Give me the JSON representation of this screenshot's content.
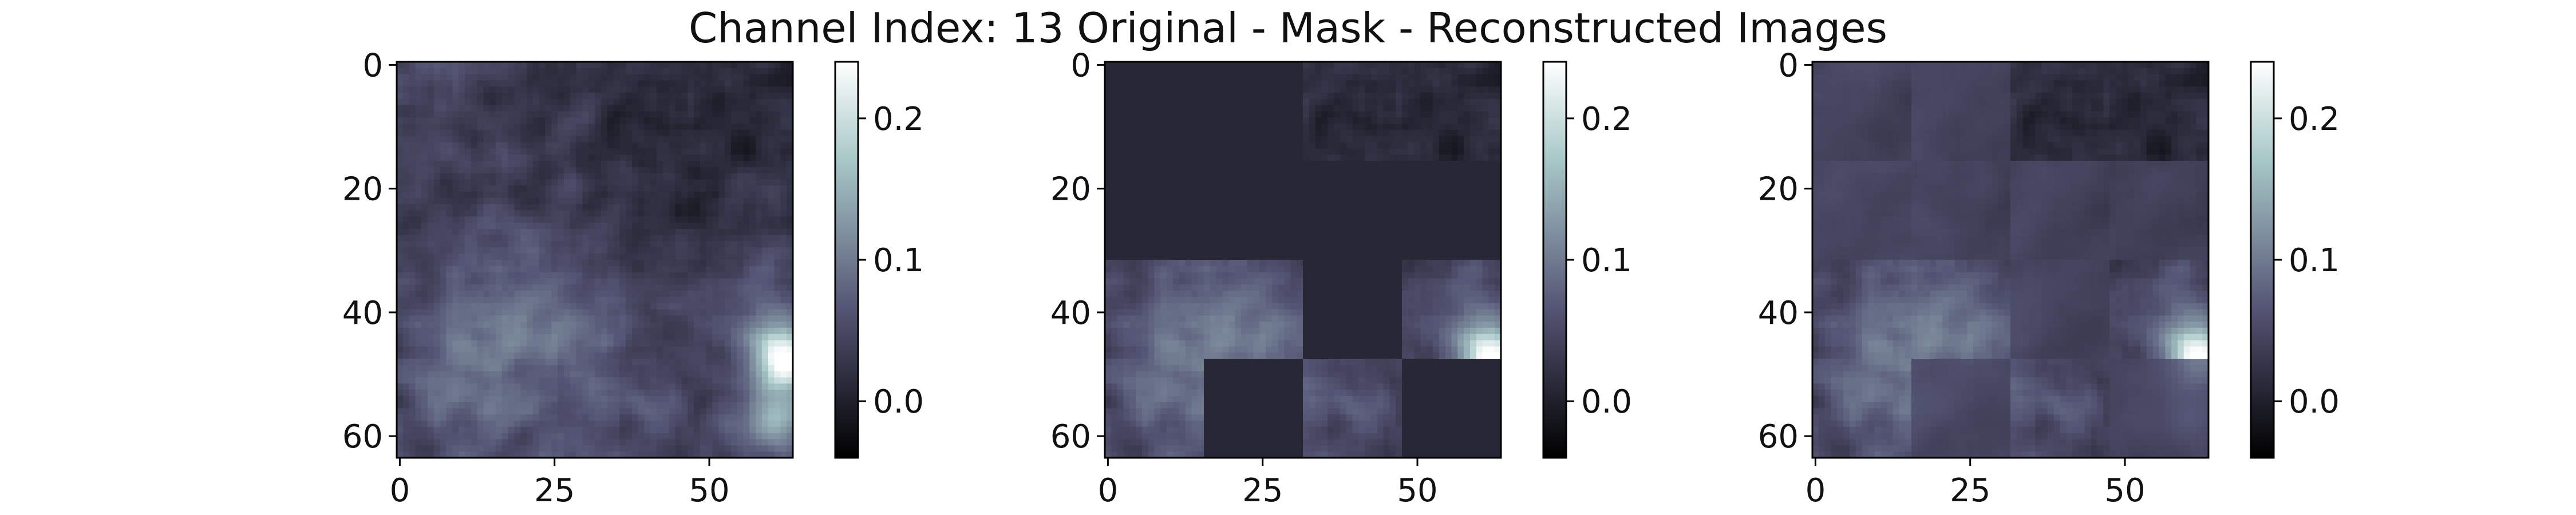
{
  "title": "Channel Index: 13 Original - Mask - Reconstructed Images",
  "colormap": "bone",
  "chart_data": [
    {
      "type": "heatmap",
      "panel": "original",
      "title": "",
      "x_ticks": [
        "0",
        "25",
        "50"
      ],
      "y_ticks": [
        "0",
        "20",
        "40",
        "60"
      ],
      "x_range": [
        0,
        63
      ],
      "y_range": [
        0,
        63
      ],
      "colorbar_ticks": [
        "0.0",
        "0.1",
        "0.2"
      ],
      "colorbar_range": [
        -0.04,
        0.24
      ],
      "mask_blocks": []
    },
    {
      "type": "heatmap",
      "panel": "masked",
      "title": "",
      "x_ticks": [
        "0",
        "25",
        "50"
      ],
      "y_ticks": [
        "0",
        "20",
        "40",
        "60"
      ],
      "x_range": [
        0,
        63
      ],
      "y_range": [
        0,
        63
      ],
      "colorbar_ticks": [
        "0.0",
        "0.1",
        "0.2"
      ],
      "colorbar_range": [
        -0.04,
        0.24
      ],
      "mask_blocks": [
        [
          0,
          0
        ],
        [
          0,
          1
        ],
        [
          1,
          0
        ],
        [
          1,
          1
        ],
        [
          1,
          2
        ],
        [
          1,
          3
        ],
        [
          2,
          2
        ],
        [
          3,
          1
        ],
        [
          3,
          3
        ]
      ]
    },
    {
      "type": "heatmap",
      "panel": "reconstructed",
      "title": "",
      "x_ticks": [
        "0",
        "25",
        "50"
      ],
      "y_ticks": [
        "0",
        "20",
        "40",
        "60"
      ],
      "x_range": [
        0,
        63
      ],
      "y_range": [
        0,
        63
      ],
      "colorbar_ticks": [
        "0.0",
        "0.1",
        "0.2"
      ],
      "colorbar_range": [
        -0.04,
        0.24
      ],
      "mask_blocks": []
    }
  ]
}
